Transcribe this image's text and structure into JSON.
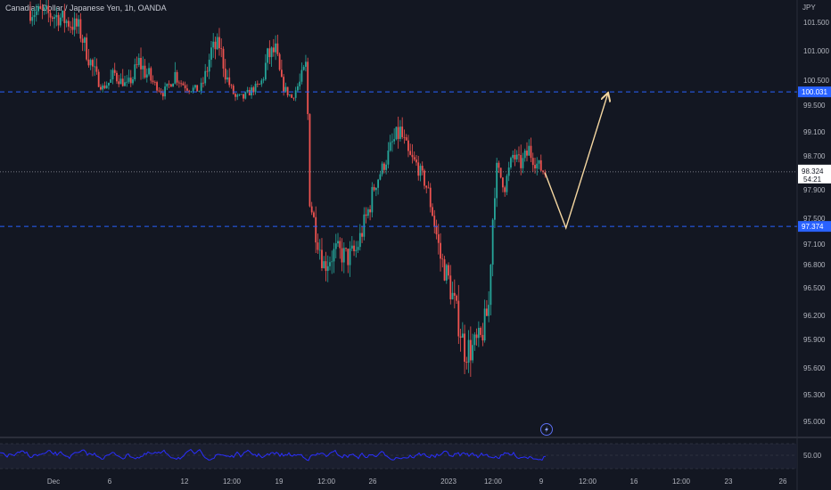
{
  "header": {
    "title": "Canadian Dollar / Japanese Yen, 1h, OANDA",
    "currency": "JPY"
  },
  "price_axis": {
    "ticks": [
      "101.500",
      "101.000",
      "100.500",
      "99.500",
      "99.100",
      "98.700",
      "97.900",
      "97.500",
      "97.100",
      "96.800",
      "96.500",
      "96.200",
      "95.900",
      "95.600",
      "95.300",
      "95.000"
    ]
  },
  "rsi_axis": {
    "ticks": [
      "50.00"
    ]
  },
  "time_axis": {
    "ticks": [
      "Dec",
      "6",
      "12",
      "12:00",
      "19",
      "12:00",
      "26",
      "2023",
      "12:00",
      "9",
      "12:00",
      "16",
      "12:00",
      "23",
      "26"
    ]
  },
  "levels": {
    "upper": {
      "price": 100.031,
      "label": "100.031",
      "color": "#2962ff"
    },
    "lower": {
      "price": 97.374,
      "label": "97.374",
      "color": "#2962ff"
    },
    "current": {
      "price": 98.324,
      "label": "98.324",
      "countdown": "54:21"
    }
  },
  "colors": {
    "background": "#131722",
    "up": "#26a69a",
    "down": "#ef5350",
    "rsi": "#2a2eff",
    "projection": "#f5d7a1",
    "badge": "#2962ff"
  },
  "lightning_icon": "lightning-icon",
  "chart_data": {
    "type": "candlestick",
    "title": "Canadian Dollar / Japanese Yen, 1h, OANDA",
    "price_range": [
      95.0,
      101.7
    ],
    "anchors": [
      {
        "t": 0.0,
        "p": 101.7
      },
      {
        "t": 3.5,
        "p": 101.6
      },
      {
        "t": 6.0,
        "p": 101.4
      },
      {
        "t": 7.5,
        "p": 100.8
      },
      {
        "t": 9.0,
        "p": 100.2
      },
      {
        "t": 10.5,
        "p": 100.6
      },
      {
        "t": 12.0,
        "p": 100.3
      },
      {
        "t": 13.5,
        "p": 100.8
      },
      {
        "t": 15.0,
        "p": 100.5
      },
      {
        "t": 16.5,
        "p": 100.0
      },
      {
        "t": 18.0,
        "p": 100.6
      },
      {
        "t": 19.5,
        "p": 100.2
      },
      {
        "t": 21.0,
        "p": 100.1
      },
      {
        "t": 22.5,
        "p": 101.0
      },
      {
        "t": 23.5,
        "p": 101.1
      },
      {
        "t": 24.5,
        "p": 100.5
      },
      {
        "t": 25.5,
        "p": 99.8
      },
      {
        "t": 26.5,
        "p": 99.8
      },
      {
        "t": 27.5,
        "p": 100.1
      },
      {
        "t": 28.5,
        "p": 100.3
      },
      {
        "t": 29.5,
        "p": 100.9
      },
      {
        "t": 30.5,
        "p": 101.0
      },
      {
        "t": 31.5,
        "p": 100.2
      },
      {
        "t": 32.5,
        "p": 99.8
      },
      {
        "t": 33.5,
        "p": 100.4
      },
      {
        "t": 34.4,
        "p": 100.8
      },
      {
        "t": 34.6,
        "p": 97.9
      },
      {
        "t": 35.5,
        "p": 97.3
      },
      {
        "t": 36.5,
        "p": 96.8
      },
      {
        "t": 38.0,
        "p": 97.0
      },
      {
        "t": 39.5,
        "p": 96.9
      },
      {
        "t": 40.5,
        "p": 97.0
      },
      {
        "t": 42.0,
        "p": 97.6
      },
      {
        "t": 43.5,
        "p": 98.3
      },
      {
        "t": 45.0,
        "p": 98.9
      },
      {
        "t": 46.0,
        "p": 99.1
      },
      {
        "t": 47.0,
        "p": 98.7
      },
      {
        "t": 48.0,
        "p": 98.5
      },
      {
        "t": 49.0,
        "p": 98.1
      },
      {
        "t": 50.0,
        "p": 97.6
      },
      {
        "t": 51.0,
        "p": 96.9
      },
      {
        "t": 52.0,
        "p": 96.6
      },
      {
        "t": 53.0,
        "p": 96.2
      },
      {
        "t": 54.0,
        "p": 95.8
      },
      {
        "t": 55.0,
        "p": 95.8
      },
      {
        "t": 56.0,
        "p": 95.9
      },
      {
        "t": 57.0,
        "p": 96.3
      },
      {
        "t": 57.5,
        "p": 97.5
      },
      {
        "t": 58.0,
        "p": 98.4
      },
      {
        "t": 59.0,
        "p": 98.0
      },
      {
        "t": 60.0,
        "p": 98.7
      },
      {
        "t": 61.0,
        "p": 98.5
      },
      {
        "t": 62.0,
        "p": 98.8
      },
      {
        "t": 63.0,
        "p": 98.5
      },
      {
        "t": 64.0,
        "p": 98.3
      }
    ],
    "projection": [
      {
        "t": 64.0,
        "p": 98.3
      },
      {
        "t": 66.6,
        "p": 97.35
      },
      {
        "t": 71.8,
        "p": 99.95
      }
    ],
    "rsi_level": 50.0
  }
}
